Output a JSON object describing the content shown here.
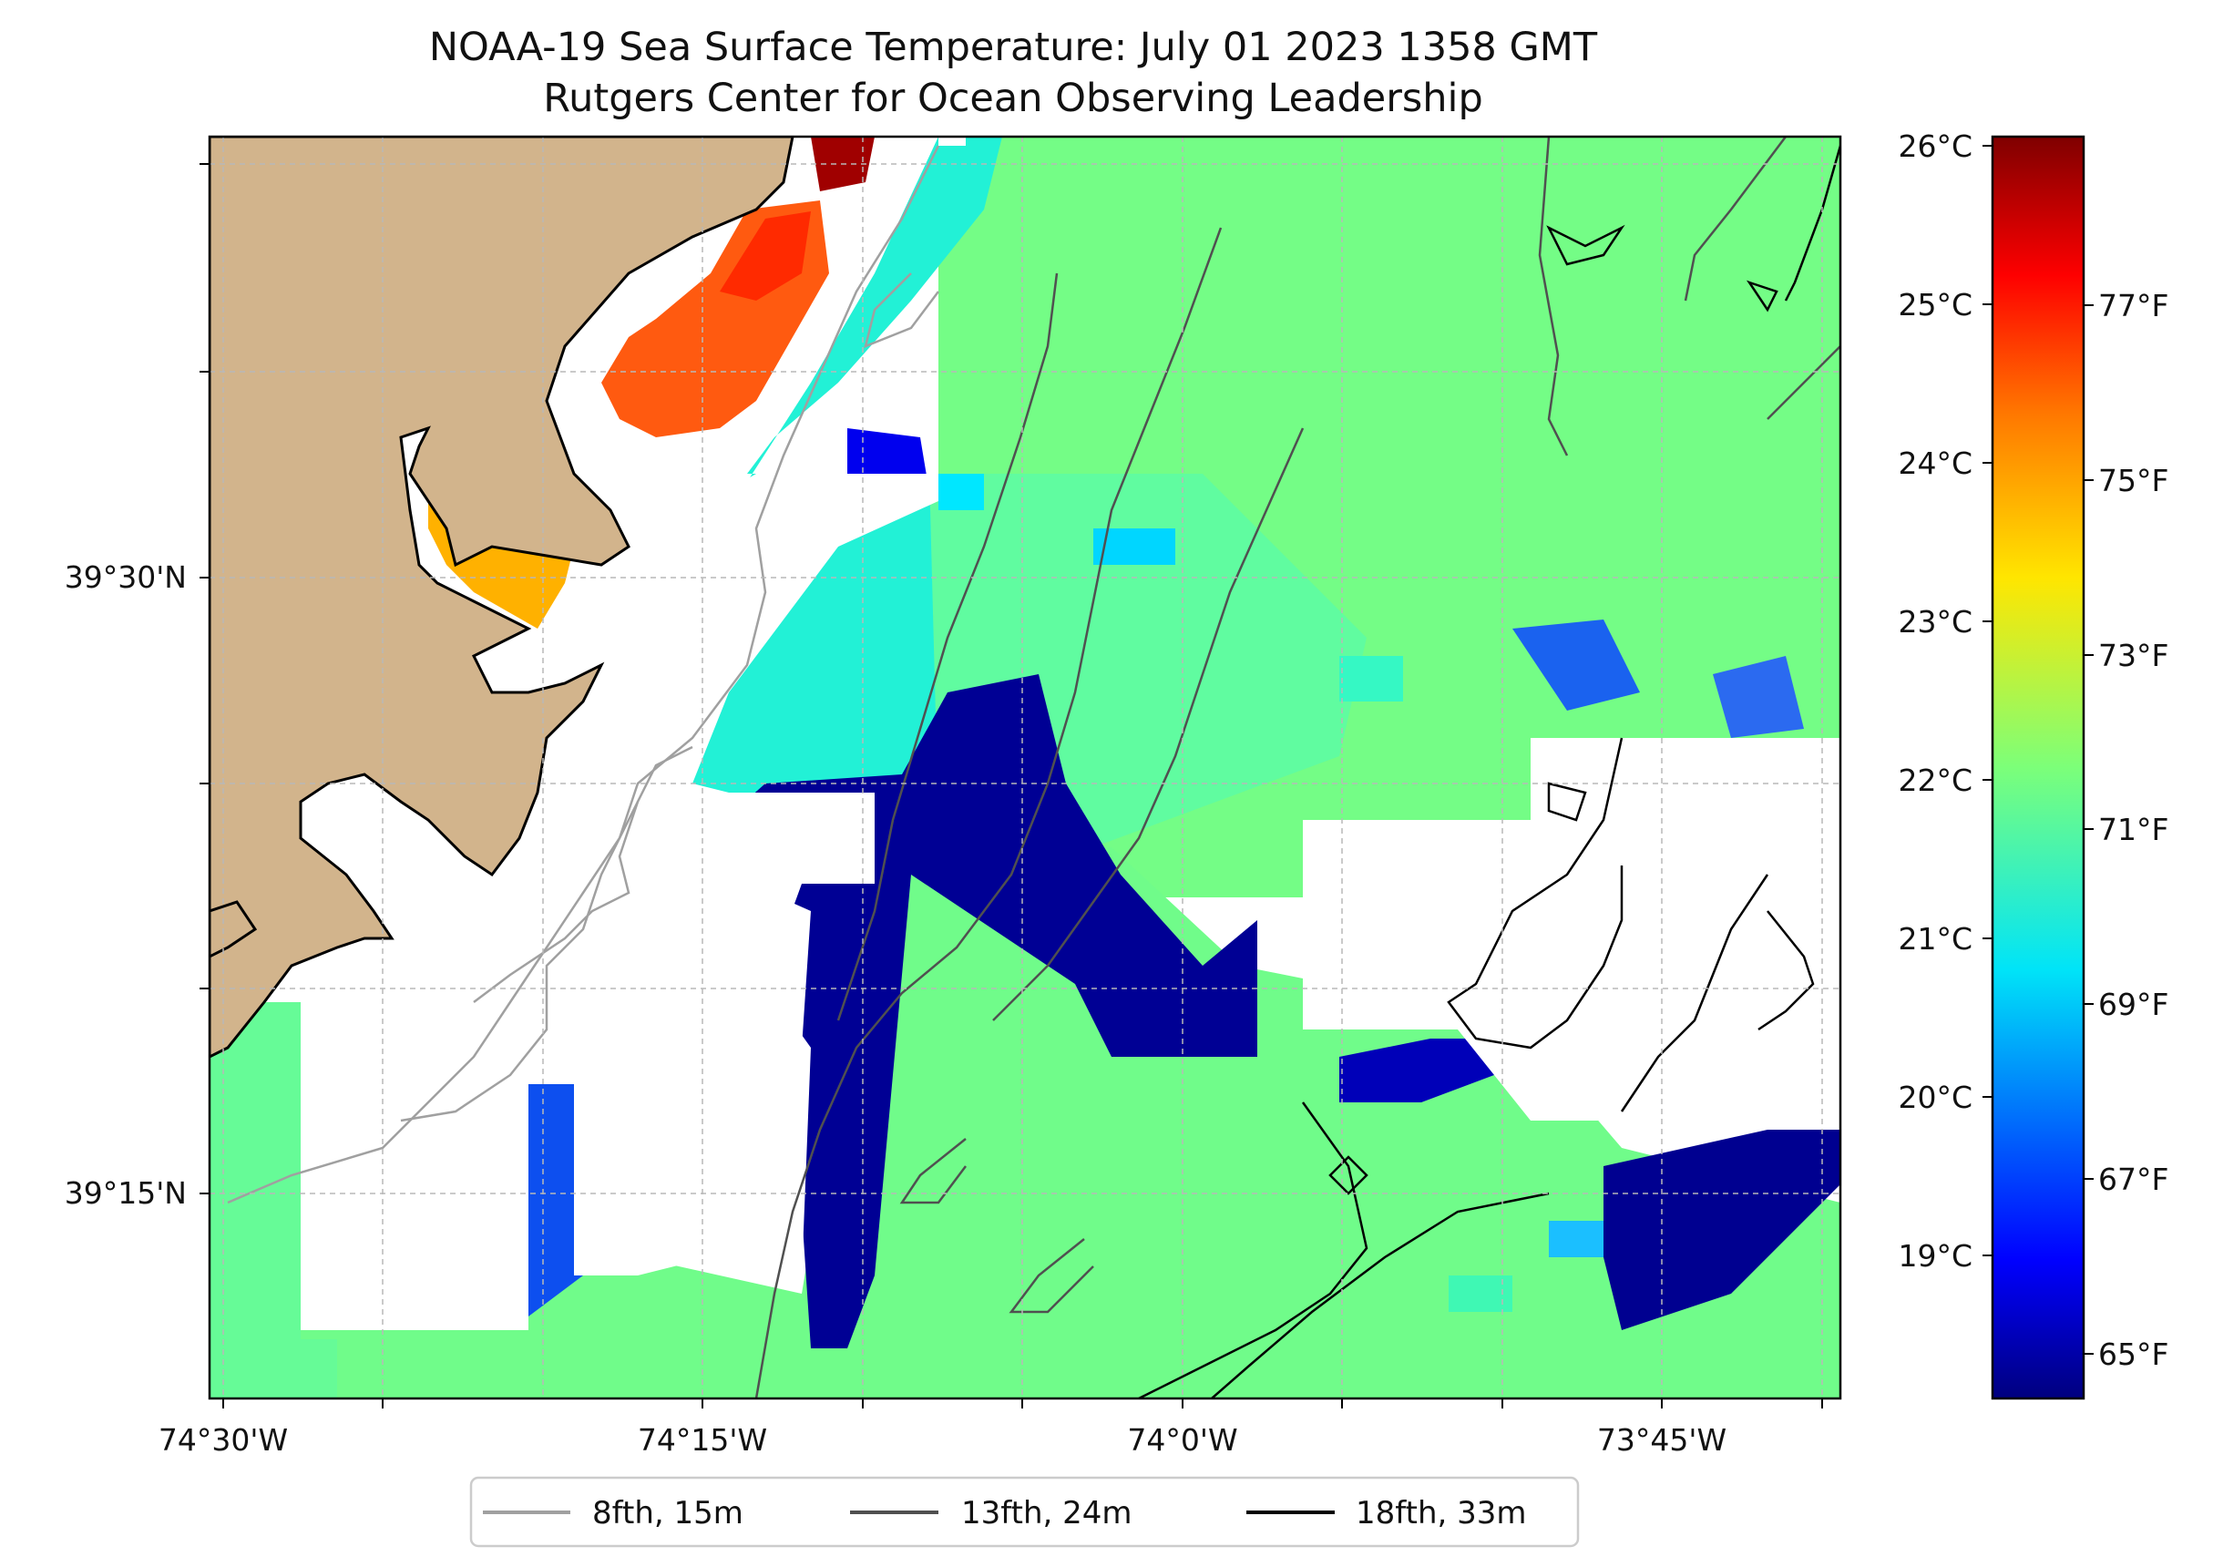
{
  "title_line1": "NOAA-19 Sea Surface Temperature: July 01 2023 1358 GMT",
  "title_line2": "Rutgers Center for Ocean Observing Leadership",
  "lon_ticks": [
    {
      "label": "74°30'W",
      "lon": -74.5
    },
    {
      "label": "74°15'W",
      "lon": -74.25
    },
    {
      "label": "74°0'W",
      "lon": -74.0
    },
    {
      "label": "73°45'W",
      "lon": -73.75
    }
  ],
  "lat_ticks": [
    {
      "label": "39°30'N",
      "lat": 39.5
    },
    {
      "label": "39°15'N",
      "lat": 39.25
    }
  ],
  "colorbar": {
    "celsius_ticks": [
      "26°C",
      "25°C",
      "24°C",
      "23°C",
      "22°C",
      "21°C",
      "20°C",
      "19°C"
    ],
    "fahrenheit_ticks": [
      "77°F",
      "75°F",
      "73°F",
      "71°F",
      "69°F",
      "67°F",
      "65°F"
    ],
    "colors": [
      "#00007f",
      "#0000ff",
      "#007fff",
      "#00ffff",
      "#7fff7f",
      "#ffff00",
      "#ff7f00",
      "#ff0000",
      "#7f0000"
    ]
  },
  "legend": [
    {
      "label": "8fth, 15m",
      "color": "#a0a0a0"
    },
    {
      "label": "13fth, 24m",
      "color": "#505050"
    },
    {
      "label": "18fth, 33m",
      "color": "#000000"
    }
  ],
  "colors": {
    "land": "#d2b48c",
    "no_data": "#ffffff",
    "ocean_typical": "#6cfd8e"
  }
}
